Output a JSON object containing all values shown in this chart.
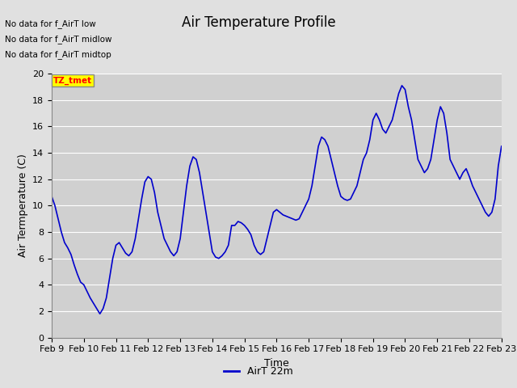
{
  "title": "Air Temperature Profile",
  "xlabel": "Time",
  "ylabel": "Air Termperature (C)",
  "legend_label": "AirT 22m",
  "text_annotations": [
    "No data for f_AirT low",
    "No data for f_AirT midlow",
    "No data for f_AirT midtop"
  ],
  "tz_label": "TZ_tmet",
  "ylim": [
    0,
    20
  ],
  "yticks": [
    0,
    2,
    4,
    6,
    8,
    10,
    12,
    14,
    16,
    18,
    20
  ],
  "line_color": "#0000cc",
  "bg_color": "#e0e0e0",
  "plot_bg_color": "#d0d0d0",
  "grid_color": "#ffffff",
  "title_fontsize": 12,
  "axis_fontsize": 9,
  "tick_fontsize": 8,
  "x_labels": [
    "Feb 9",
    "Feb 10",
    "Feb 11",
    "Feb 12",
    "Feb 13",
    "Feb 14",
    "Feb 15",
    "Feb 16",
    "Feb 17",
    "Feb 18",
    "Feb 19",
    "Feb 20",
    "Feb 21",
    "Feb 22",
    "Feb 23"
  ],
  "time_values": [
    0.0,
    0.1,
    0.2,
    0.3,
    0.4,
    0.5,
    0.6,
    0.7,
    0.8,
    0.9,
    1.0,
    1.1,
    1.2,
    1.3,
    1.4,
    1.5,
    1.6,
    1.7,
    1.8,
    1.9,
    2.0,
    2.1,
    2.2,
    2.3,
    2.4,
    2.5,
    2.6,
    2.7,
    2.8,
    2.9,
    3.0,
    3.1,
    3.2,
    3.3,
    3.4,
    3.5,
    3.6,
    3.7,
    3.8,
    3.9,
    4.0,
    4.1,
    4.2,
    4.3,
    4.4,
    4.5,
    4.6,
    4.7,
    4.8,
    4.9,
    5.0,
    5.1,
    5.2,
    5.3,
    5.4,
    5.5,
    5.6,
    5.7,
    5.8,
    5.9,
    6.0,
    6.1,
    6.2,
    6.3,
    6.4,
    6.5,
    6.6,
    6.7,
    6.8,
    6.9,
    7.0,
    7.1,
    7.2,
    7.3,
    7.4,
    7.5,
    7.6,
    7.7,
    7.8,
    7.9,
    8.0,
    8.1,
    8.2,
    8.3,
    8.4,
    8.5,
    8.6,
    8.7,
    8.8,
    8.9,
    9.0,
    9.1,
    9.2,
    9.3,
    9.4,
    9.5,
    9.6,
    9.7,
    9.8,
    9.9,
    10.0,
    10.1,
    10.2,
    10.3,
    10.4,
    10.5,
    10.6,
    10.7,
    10.8,
    10.9,
    11.0,
    11.1,
    11.2,
    11.3,
    11.4,
    11.5,
    11.6,
    11.7,
    11.8,
    11.9,
    12.0,
    12.1,
    12.2,
    12.3,
    12.4,
    12.5,
    12.6,
    12.7,
    12.8,
    12.9,
    13.0,
    13.1,
    13.2,
    13.3,
    13.4,
    13.5,
    13.6,
    13.7,
    13.8,
    13.9,
    14.0
  ],
  "temp_values": [
    10.7,
    10.0,
    9.0,
    8.0,
    7.2,
    6.8,
    6.3,
    5.5,
    4.8,
    4.2,
    4.0,
    3.5,
    3.0,
    2.6,
    2.2,
    1.8,
    2.2,
    3.0,
    4.5,
    6.0,
    7.0,
    7.2,
    6.8,
    6.4,
    6.2,
    6.5,
    7.5,
    9.0,
    10.5,
    11.8,
    12.2,
    12.0,
    11.0,
    9.5,
    8.5,
    7.5,
    7.0,
    6.5,
    6.2,
    6.5,
    7.5,
    9.5,
    11.5,
    13.0,
    13.7,
    13.5,
    12.5,
    11.0,
    9.5,
    8.0,
    6.5,
    6.1,
    6.0,
    6.2,
    6.5,
    7.0,
    8.5,
    8.5,
    8.8,
    8.7,
    8.5,
    8.2,
    7.8,
    7.0,
    6.5,
    6.3,
    6.5,
    7.5,
    8.5,
    9.5,
    9.7,
    9.5,
    9.3,
    9.2,
    9.1,
    9.0,
    8.9,
    9.0,
    9.5,
    10.0,
    10.5,
    11.5,
    13.0,
    14.5,
    15.2,
    15.0,
    14.5,
    13.5,
    12.5,
    11.5,
    10.7,
    10.5,
    10.4,
    10.5,
    11.0,
    11.5,
    12.5,
    13.5,
    14.0,
    15.0,
    16.5,
    17.0,
    16.5,
    15.8,
    15.5,
    16.0,
    16.5,
    17.5,
    18.5,
    19.1,
    18.8,
    17.5,
    16.5,
    15.0,
    13.5,
    13.0,
    12.5,
    12.8,
    13.5,
    15.0,
    16.5,
    17.5,
    17.0,
    15.5,
    13.5,
    13.0,
    12.5,
    12.0,
    12.5,
    12.8,
    12.2,
    11.5,
    11.0,
    10.5,
    10.0,
    9.5,
    9.2,
    9.5,
    10.5,
    13.0,
    14.5
  ]
}
